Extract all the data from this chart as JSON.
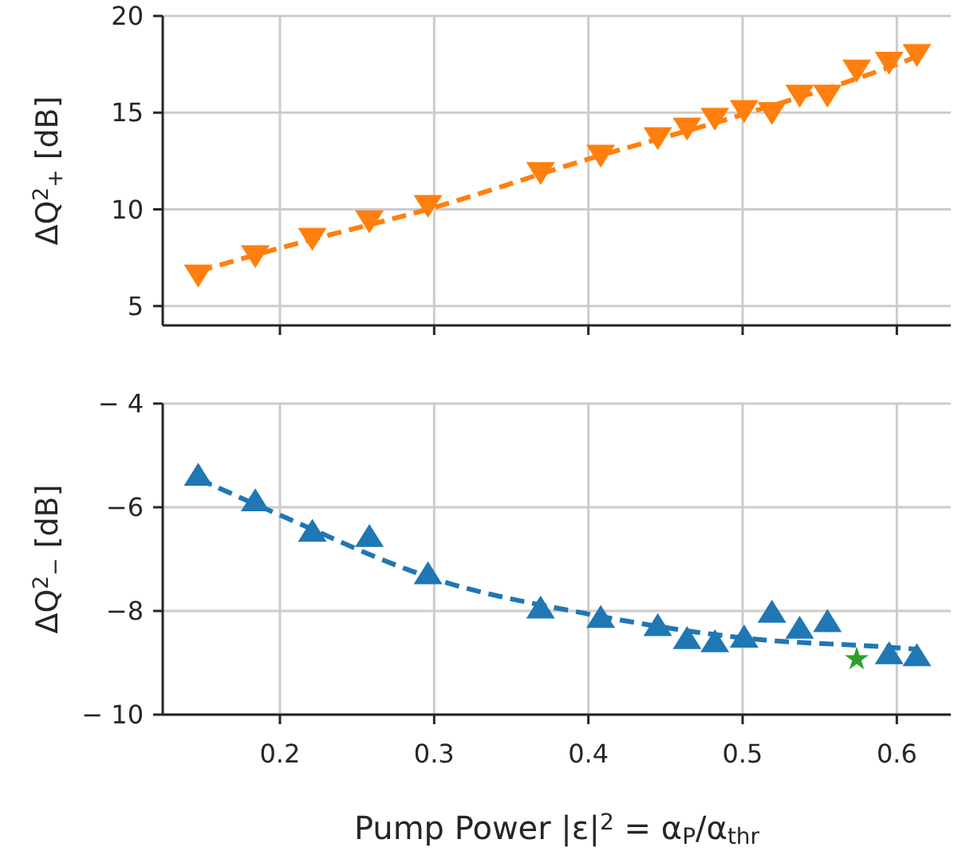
{
  "chart_data": [
    {
      "type": "scatter",
      "ylabel": "ΔQ$^{2}$$_{+}$ [dB]",
      "xlim": [
        0.124,
        0.635
      ],
      "xticks": [
        {
          "value": 0.2,
          "label": null
        },
        {
          "value": 0.3,
          "label": null
        },
        {
          "value": 0.4,
          "label": null
        },
        {
          "value": 0.5,
          "label": null
        },
        {
          "value": 0.6,
          "label": null
        }
      ],
      "ylim": [
        4,
        20
      ],
      "yticks": [
        5,
        10,
        15,
        20
      ],
      "grid": true,
      "tick_labels": "y",
      "series": [
        {
          "type": "line",
          "color": "#ff7f0e",
          "marker": "none",
          "line_style": "dashed",
          "x": [
            0.147,
            0.2,
            0.3,
            0.4,
            0.5,
            0.6,
            0.613
          ],
          "values": [
            6.8,
            8.0,
            10.1,
            12.6,
            14.9,
            17.5,
            17.9
          ]
        },
        {
          "color": "#ff7f0e",
          "marker": "triangle-down",
          "x": [
            0.147,
            0.184,
            0.221,
            0.258,
            0.296,
            0.369,
            0.408,
            0.445,
            0.464,
            0.482,
            0.501,
            0.519,
            0.537,
            0.555,
            0.574,
            0.595,
            0.613
          ],
          "values": [
            6.7,
            7.7,
            8.6,
            9.5,
            10.3,
            12.0,
            12.9,
            13.8,
            14.3,
            14.8,
            15.2,
            15.1,
            16.0,
            16.0,
            17.3,
            17.7,
            18.1
          ]
        }
      ]
    },
    {
      "type": "scatter",
      "ylabel": "ΔQ$^{2}$$_{−}$ [dB]",
      "xlabel": "Pump Power |ε|$^{2}$ = α$_{P}$/α$_{thr}$",
      "xlim": [
        0.124,
        0.635
      ],
      "xticks": [
        0.2,
        0.3,
        0.4,
        0.5,
        0.6
      ],
      "ylim": [
        -10,
        -4
      ],
      "yticks": [
        {
          "value": -10,
          "label": "− 10"
        },
        {
          "value": -8,
          "label": "−8"
        },
        {
          "value": -6,
          "label": "−6"
        },
        {
          "value": -4,
          "label": "− 4"
        }
      ],
      "grid": true,
      "series": [
        {
          "type": "line",
          "color": "#1f77b4",
          "marker": "none",
          "line_style": "dashed",
          "x": [
            0.147,
            0.2,
            0.3,
            0.4,
            0.5,
            0.6,
            0.613
          ],
          "values": [
            -5.45,
            -6.15,
            -7.38,
            -8.06,
            -8.52,
            -8.71,
            -8.74
          ]
        },
        {
          "color": "#1f77b4",
          "marker": "triangle",
          "x": [
            0.147,
            0.184,
            0.221,
            0.258,
            0.296,
            0.369,
            0.408,
            0.445,
            0.464,
            0.482,
            0.501,
            0.519,
            0.537,
            0.555,
            0.595,
            0.613
          ],
          "values": [
            -5.42,
            -5.91,
            -6.5,
            -6.6,
            -7.32,
            -7.98,
            -8.16,
            -8.32,
            -8.57,
            -8.63,
            -8.54,
            -8.06,
            -8.37,
            -8.24,
            -8.86,
            -8.9
          ]
        },
        {
          "color": "#2ca02c",
          "marker": "star",
          "x": [
            0.574
          ],
          "values": [
            -8.93
          ]
        }
      ]
    }
  ]
}
